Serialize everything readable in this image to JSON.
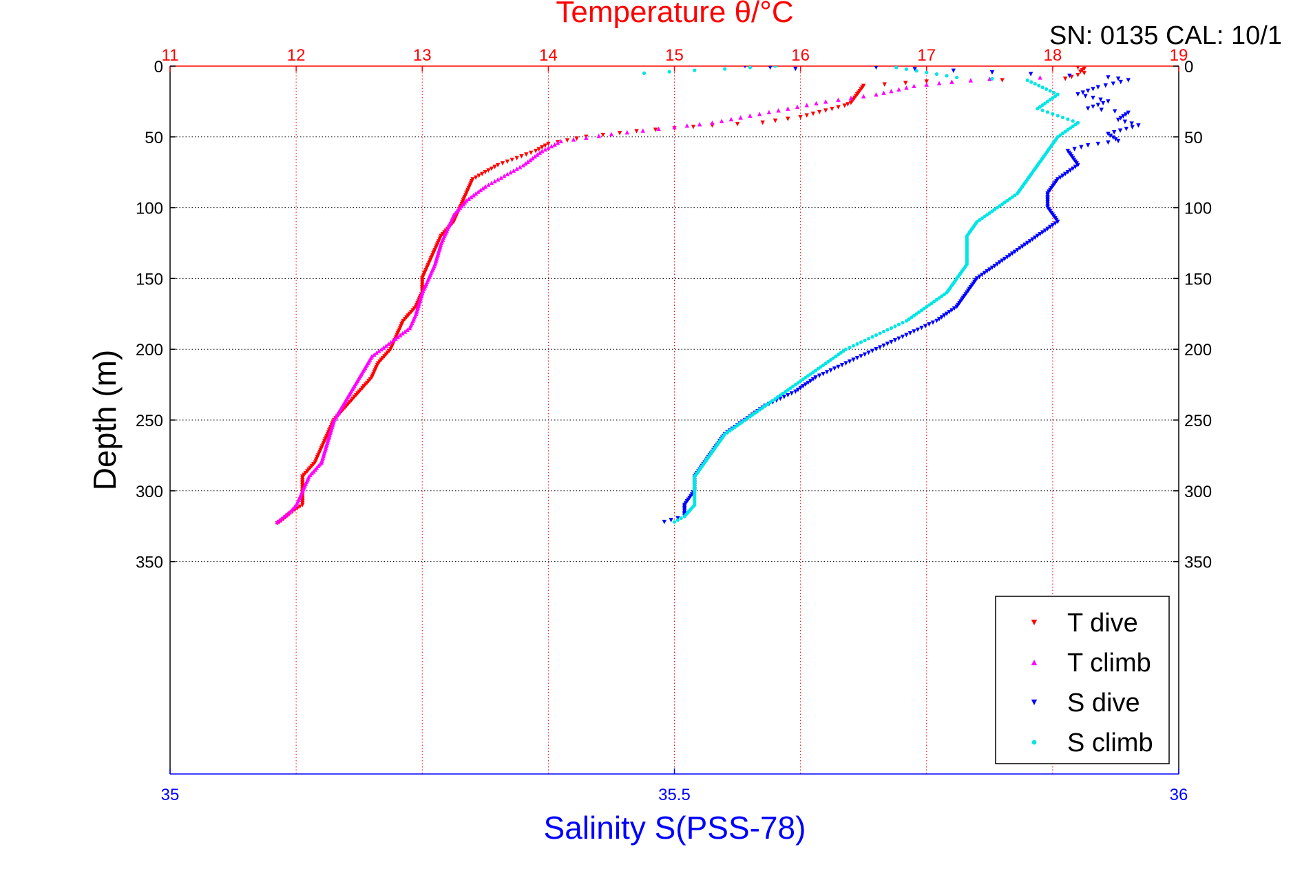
{
  "chart_data": {
    "type": "scatter",
    "top_axis": {
      "label": "Temperature θ/°C",
      "range": [
        11,
        19
      ],
      "ticks": [
        "11",
        "12",
        "13",
        "14",
        "15",
        "16",
        "17",
        "18",
        "19"
      ],
      "color": "#ff0000"
    },
    "bottom_axis": {
      "label": "Salinity S(PSS-78)",
      "range": [
        35,
        36
      ],
      "ticks": [
        "35",
        "35.5",
        "36"
      ],
      "color": "#0000ff"
    },
    "y_axis": {
      "label": "Depth (m)",
      "range": [
        0,
        500
      ],
      "inverted": true,
      "ticks": [
        "0",
        "50",
        "100",
        "150",
        "200",
        "250",
        "300",
        "350"
      ]
    },
    "grid": true,
    "annotation": "SN: 0135  CAL: 10/1",
    "legend": {
      "placement": "bottom-right"
    },
    "series": [
      {
        "name": "T dive",
        "axis": "temperature",
        "color": "#ff0000",
        "marker": "triangle-down",
        "points": [
          [
            18.2,
            1
          ],
          [
            18.25,
            2
          ],
          [
            18.22,
            4
          ],
          [
            18.25,
            5
          ],
          [
            18.1,
            9
          ],
          [
            17.6,
            10
          ],
          [
            17.0,
            11
          ],
          [
            16.5,
            14
          ],
          [
            16.45,
            20
          ],
          [
            16.4,
            26
          ],
          [
            16.35,
            28
          ],
          [
            16.0,
            36
          ],
          [
            15.7,
            40
          ],
          [
            15.3,
            42
          ],
          [
            15.0,
            44
          ],
          [
            14.7,
            46
          ],
          [
            14.3,
            50
          ],
          [
            14.0,
            55
          ],
          [
            13.9,
            60
          ],
          [
            13.75,
            65
          ],
          [
            13.6,
            70
          ],
          [
            13.5,
            75
          ],
          [
            13.4,
            80
          ],
          [
            13.35,
            90
          ],
          [
            13.3,
            100
          ],
          [
            13.25,
            110
          ],
          [
            13.15,
            120
          ],
          [
            13.1,
            130
          ],
          [
            13.0,
            150
          ],
          [
            13.0,
            160
          ],
          [
            12.95,
            170
          ],
          [
            12.85,
            180
          ],
          [
            12.8,
            190
          ],
          [
            12.75,
            200
          ],
          [
            12.65,
            210
          ],
          [
            12.6,
            220
          ],
          [
            12.5,
            230
          ],
          [
            12.4,
            240
          ],
          [
            12.3,
            250
          ],
          [
            12.25,
            260
          ],
          [
            12.2,
            270
          ],
          [
            12.15,
            280
          ],
          [
            12.05,
            290
          ],
          [
            12.05,
            300
          ],
          [
            12.05,
            310
          ],
          [
            11.95,
            316
          ],
          [
            11.9,
            320
          ],
          [
            11.85,
            323
          ]
        ]
      },
      {
        "name": "T climb",
        "axis": "temperature",
        "color": "#ff00ff",
        "marker": "triangle-up",
        "points": [
          [
            17.9,
            8
          ],
          [
            17.5,
            9
          ],
          [
            17.2,
            11
          ],
          [
            16.9,
            14
          ],
          [
            16.6,
            20
          ],
          [
            16.2,
            25
          ],
          [
            15.9,
            30
          ],
          [
            15.6,
            35
          ],
          [
            15.3,
            40
          ],
          [
            15.0,
            43
          ],
          [
            14.5,
            48
          ],
          [
            14.1,
            53
          ],
          [
            13.95,
            60
          ],
          [
            13.8,
            70
          ],
          [
            13.6,
            80
          ],
          [
            13.5,
            85
          ],
          [
            13.35,
            95
          ],
          [
            13.25,
            105
          ],
          [
            13.2,
            115
          ],
          [
            13.15,
            125
          ],
          [
            13.1,
            140
          ],
          [
            13.05,
            150
          ],
          [
            13.0,
            160
          ],
          [
            12.95,
            175
          ],
          [
            12.9,
            185
          ],
          [
            12.75,
            195
          ],
          [
            12.6,
            205
          ],
          [
            12.5,
            220
          ],
          [
            12.4,
            235
          ],
          [
            12.3,
            250
          ],
          [
            12.25,
            265
          ],
          [
            12.2,
            280
          ],
          [
            12.1,
            290
          ],
          [
            12.05,
            300
          ],
          [
            12.0,
            310
          ],
          [
            11.95,
            315
          ],
          [
            11.85,
            322
          ]
        ]
      },
      {
        "name": "S dive",
        "axis": "salinity",
        "color": "#0000ff",
        "marker": "triangle-down",
        "points": [
          [
            35.57,
            0
          ],
          [
            35.62,
            2
          ],
          [
            35.7,
            1
          ],
          [
            35.93,
            8
          ],
          [
            35.95,
            10
          ],
          [
            35.92,
            15
          ],
          [
            35.9,
            20
          ],
          [
            35.93,
            25
          ],
          [
            35.91,
            30
          ],
          [
            35.95,
            33
          ],
          [
            35.94,
            38
          ],
          [
            35.96,
            42
          ],
          [
            35.93,
            48
          ],
          [
            35.94,
            53
          ],
          [
            35.91,
            56
          ],
          [
            35.89,
            60
          ],
          [
            35.9,
            70
          ],
          [
            35.88,
            80
          ],
          [
            35.87,
            90
          ],
          [
            35.87,
            100
          ],
          [
            35.88,
            110
          ],
          [
            35.86,
            120
          ],
          [
            35.84,
            130
          ],
          [
            35.82,
            140
          ],
          [
            35.8,
            150
          ],
          [
            35.79,
            160
          ],
          [
            35.78,
            170
          ],
          [
            35.76,
            180
          ],
          [
            35.73,
            190
          ],
          [
            35.7,
            200
          ],
          [
            35.67,
            210
          ],
          [
            35.64,
            220
          ],
          [
            35.62,
            230
          ],
          [
            35.59,
            240
          ],
          [
            35.57,
            250
          ],
          [
            35.55,
            260
          ],
          [
            35.54,
            270
          ],
          [
            35.53,
            280
          ],
          [
            35.52,
            290
          ],
          [
            35.52,
            300
          ],
          [
            35.51,
            310
          ],
          [
            35.51,
            318
          ],
          [
            35.49,
            322
          ]
        ]
      },
      {
        "name": "S climb",
        "axis": "salinity",
        "color": "#00e5e5",
        "marker": "dot",
        "points": [
          [
            35.47,
            5
          ],
          [
            35.52,
            3
          ],
          [
            35.55,
            2
          ],
          [
            35.6,
            0
          ],
          [
            35.72,
            1
          ],
          [
            35.78,
            8
          ],
          [
            35.85,
            10
          ],
          [
            35.88,
            20
          ],
          [
            35.86,
            30
          ],
          [
            35.9,
            40
          ],
          [
            35.88,
            50
          ],
          [
            35.87,
            60
          ],
          [
            35.86,
            70
          ],
          [
            35.85,
            80
          ],
          [
            35.84,
            90
          ],
          [
            35.82,
            100
          ],
          [
            35.8,
            110
          ],
          [
            35.79,
            120
          ],
          [
            35.79,
            130
          ],
          [
            35.79,
            140
          ],
          [
            35.78,
            150
          ],
          [
            35.77,
            160
          ],
          [
            35.75,
            170
          ],
          [
            35.73,
            180
          ],
          [
            35.7,
            190
          ],
          [
            35.67,
            200
          ],
          [
            35.65,
            210
          ],
          [
            35.63,
            220
          ],
          [
            35.61,
            230
          ],
          [
            35.59,
            240
          ],
          [
            35.57,
            250
          ],
          [
            35.55,
            260
          ],
          [
            35.54,
            270
          ],
          [
            35.53,
            280
          ],
          [
            35.52,
            290
          ],
          [
            35.52,
            300
          ],
          [
            35.52,
            310
          ],
          [
            35.51,
            318
          ],
          [
            35.5,
            322
          ]
        ]
      }
    ]
  }
}
